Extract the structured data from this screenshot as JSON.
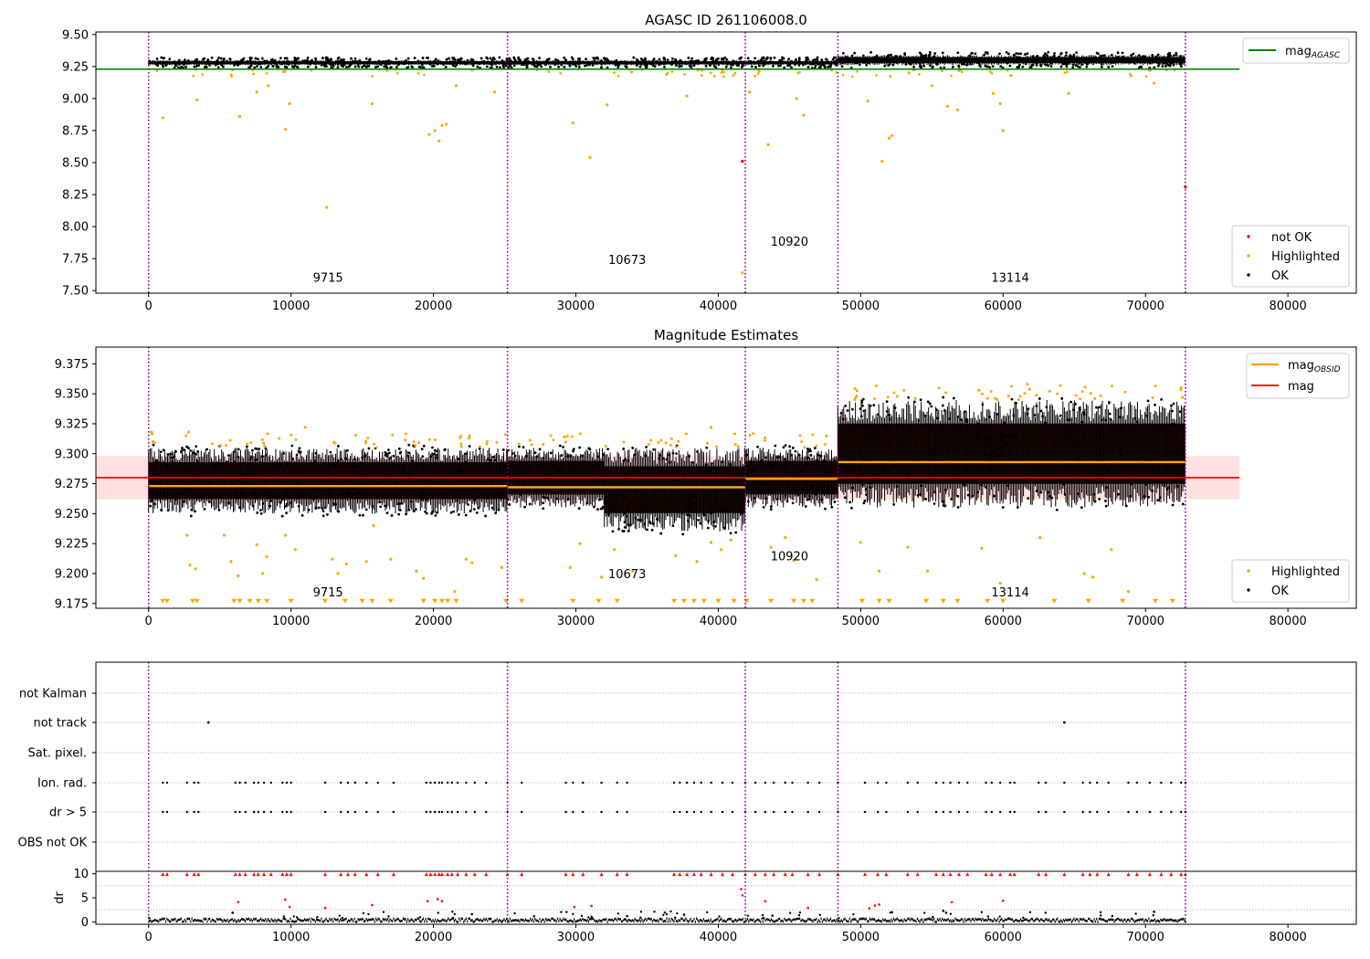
{
  "chart_data": [
    {
      "type": "scatter",
      "title": "AGASC ID 261106008.0",
      "xlim": [
        -3700,
        84800
      ],
      "ylim": [
        7.48,
        9.52
      ],
      "x_ticks": [
        0,
        10000,
        20000,
        30000,
        40000,
        50000,
        60000,
        70000,
        80000
      ],
      "y_ticks": [
        7.5,
        7.75,
        8.0,
        8.25,
        8.5,
        8.75,
        9.0,
        9.25,
        9.5
      ],
      "y_tick_labels": [
        "7.50",
        "7.75",
        "8.00",
        "8.25",
        "8.50",
        "8.75",
        "9.00",
        "9.25",
        "9.50"
      ],
      "obs_boundaries": [
        0,
        25200,
        41900,
        48400,
        72800
      ],
      "mag_agasc": 9.23,
      "mag_agasc_xrange": [
        -3700,
        76600
      ],
      "obs_labels": [
        {
          "text": "9715",
          "x": 12600,
          "y": 7.57
        },
        {
          "text": "10673",
          "x": 33600,
          "y": 7.71
        },
        {
          "text": "10920",
          "x": 45000,
          "y": 7.85
        },
        {
          "text": "13114",
          "x": 60500,
          "y": 7.57
        }
      ],
      "legend_top": [
        {
          "label": "mag",
          "sub": "AGASC",
          "color": "#008000"
        }
      ],
      "legend_bottom": [
        {
          "label": "not OK",
          "color": "#ff0000"
        },
        {
          "label": "Highlighted",
          "color": "#ffa500"
        },
        {
          "label": "OK",
          "color": "#000000"
        }
      ],
      "ok_bands": [
        {
          "x0": 0,
          "x1": 25200,
          "y0": 9.26,
          "y1": 9.3
        },
        {
          "x0": 25200,
          "x1": 41900,
          "y0": 9.26,
          "y1": 9.3
        },
        {
          "x0": 41900,
          "x1": 48400,
          "y0": 9.26,
          "y1": 9.3
        },
        {
          "x0": 48400,
          "x1": 72800,
          "y0": 9.26,
          "y1": 9.34
        }
      ],
      "highlighted_points": [
        [
          1000,
          8.85
        ],
        [
          3400,
          8.99
        ],
        [
          6400,
          8.86
        ],
        [
          7600,
          9.05
        ],
        [
          8400,
          9.1
        ],
        [
          9600,
          8.76
        ],
        [
          9900,
          8.96
        ],
        [
          12500,
          8.15
        ],
        [
          15700,
          8.96
        ],
        [
          19700,
          8.72
        ],
        [
          20100,
          8.75
        ],
        [
          20400,
          8.67
        ],
        [
          20600,
          8.79
        ],
        [
          20900,
          8.8
        ],
        [
          21600,
          9.1
        ],
        [
          24300,
          9.05
        ],
        [
          29800,
          8.81
        ],
        [
          31000,
          8.54
        ],
        [
          32200,
          8.95
        ],
        [
          37800,
          9.02
        ],
        [
          41700,
          7.64
        ],
        [
          42200,
          9.05
        ],
        [
          43500,
          8.64
        ],
        [
          45500,
          9.0
        ],
        [
          46000,
          8.87
        ],
        [
          50500,
          8.98
        ],
        [
          51500,
          8.51
        ],
        [
          52000,
          8.69
        ],
        [
          52200,
          8.71
        ],
        [
          55000,
          9.1
        ],
        [
          56100,
          8.94
        ],
        [
          56800,
          8.91
        ],
        [
          59300,
          9.04
        ],
        [
          59800,
          8.96
        ],
        [
          60000,
          8.75
        ],
        [
          64600,
          9.04
        ],
        [
          70600,
          9.12
        ]
      ],
      "notok_points": [
        [
          41700,
          8.51
        ],
        [
          72800,
          8.31
        ]
      ]
    },
    {
      "type": "scatter",
      "title": "Magnitude Estimates",
      "xlim": [
        -3700,
        84800
      ],
      "ylim": [
        9.171,
        9.389
      ],
      "x_ticks": [
        0,
        10000,
        20000,
        30000,
        40000,
        50000,
        60000,
        70000,
        80000
      ],
      "y_ticks": [
        9.175,
        9.2,
        9.225,
        9.25,
        9.275,
        9.3,
        9.325,
        9.35,
        9.375
      ],
      "y_tick_labels": [
        "9.175",
        "9.200",
        "9.225",
        "9.250",
        "9.275",
        "9.300",
        "9.325",
        "9.350",
        "9.375"
      ],
      "obs_boundaries": [
        0,
        25200,
        41900,
        48400,
        72800
      ],
      "mag": 9.28,
      "mag_band": [
        9.262,
        9.298
      ],
      "mag_xrange": [
        -3700,
        76600
      ],
      "mag_obsid": [
        {
          "x0": 0,
          "x1": 25200,
          "value": 9.273
        },
        {
          "x0": 25200,
          "x1": 41900,
          "value": 9.272
        },
        {
          "x0": 41900,
          "x1": 48400,
          "value": 9.279
        },
        {
          "x0": 48400,
          "x1": 72800,
          "value": 9.293
        }
      ],
      "obs_labels": [
        {
          "text": "9715",
          "x": 12600,
          "y": 9.181
        },
        {
          "text": "10673",
          "x": 33600,
          "y": 9.196
        },
        {
          "text": "10920",
          "x": 45000,
          "y": 9.211
        },
        {
          "text": "13114",
          "x": 60500,
          "y": 9.181
        }
      ],
      "legend_top": [
        {
          "label": "mag",
          "sub": "OBSID",
          "color": "#ffa500"
        },
        {
          "label": "mag",
          "color": "#ff0000"
        }
      ],
      "legend_bottom": [
        {
          "label": "Highlighted",
          "color": "#ffa500"
        },
        {
          "label": "OK",
          "color": "#000000"
        }
      ],
      "ok_bands": [
        {
          "x0": 0,
          "x1": 25200,
          "y0": 9.25,
          "y1": 9.305
        },
        {
          "x0": 25200,
          "x1": 32000,
          "y0": 9.255,
          "y1": 9.305
        },
        {
          "x0": 32000,
          "x1": 41900,
          "y0": 9.235,
          "y1": 9.305
        },
        {
          "x0": 41900,
          "x1": 48400,
          "y0": 9.255,
          "y1": 9.305
        },
        {
          "x0": 48400,
          "x1": 72800,
          "y0": 9.255,
          "y1": 9.345
        }
      ],
      "highlighted_points": [
        [
          200,
          9.318
        ],
        [
          300,
          9.31
        ],
        [
          2700,
          9.232
        ],
        [
          2900,
          9.207
        ],
        [
          3300,
          9.204
        ],
        [
          5300,
          9.232
        ],
        [
          5800,
          9.21
        ],
        [
          6300,
          9.198
        ],
        [
          7600,
          9.224
        ],
        [
          8000,
          9.2
        ],
        [
          8300,
          9.214
        ],
        [
          9600,
          9.232
        ],
        [
          10300,
          9.22
        ],
        [
          12900,
          9.212
        ],
        [
          13300,
          9.2
        ],
        [
          13900,
          9.208
        ],
        [
          15300,
          9.21
        ],
        [
          15800,
          9.24
        ],
        [
          17000,
          9.212
        ],
        [
          18800,
          9.202
        ],
        [
          19300,
          9.196
        ],
        [
          21500,
          9.185
        ],
        [
          22300,
          9.212
        ],
        [
          22700,
          9.209
        ],
        [
          24800,
          9.205
        ],
        [
          29600,
          9.205
        ],
        [
          30300,
          9.225
        ],
        [
          31800,
          9.197
        ],
        [
          32700,
          9.22
        ],
        [
          34000,
          9.202
        ],
        [
          37000,
          9.215
        ],
        [
          38500,
          9.21
        ],
        [
          39500,
          9.226
        ],
        [
          40200,
          9.22
        ],
        [
          40900,
          9.228
        ],
        [
          43700,
          9.222
        ],
        [
          44700,
          9.23
        ],
        [
          45300,
          9.211
        ],
        [
          46900,
          9.195
        ],
        [
          50000,
          9.226
        ],
        [
          51300,
          9.202
        ],
        [
          53300,
          9.222
        ],
        [
          54700,
          9.202
        ],
        [
          58500,
          9.221
        ],
        [
          59800,
          9.192
        ],
        [
          61700,
          9.358
        ],
        [
          62600,
          9.23
        ],
        [
          65700,
          9.2
        ],
        [
          66300,
          9.197
        ],
        [
          67600,
          9.22
        ],
        [
          68800,
          9.185
        ],
        [
          72500,
          9.355
        ],
        [
          72600,
          9.347
        ],
        [
          39500,
          9.322
        ],
        [
          11000,
          9.322
        ],
        [
          2800,
          9.318
        ],
        [
          22500,
          9.313
        ],
        [
          29200,
          9.314
        ],
        [
          58300,
          9.353
        ]
      ],
      "highlighted_markers_y": 9.175,
      "highlighted_markers_x": [
        1000,
        1300,
        3100,
        3400,
        6000,
        6400,
        7100,
        7700,
        8300,
        10000,
        12400,
        13800,
        15000,
        15700,
        17000,
        19300,
        20100,
        20600,
        21000,
        21600,
        25100,
        26200,
        29800,
        31600,
        32900,
        36900,
        37600,
        38300,
        39000,
        40000,
        41100,
        42000,
        43700,
        45300,
        46000,
        46600,
        50100,
        51300,
        52000,
        54600,
        55800,
        56800,
        58900,
        60000,
        63600,
        66000,
        68400,
        70700,
        71900
      ]
    },
    {
      "type": "scatter",
      "title": "",
      "xlim": [
        -3700,
        84800
      ],
      "x_ticks": [
        0,
        10000,
        20000,
        30000,
        40000,
        50000,
        60000,
        70000,
        80000
      ],
      "obs_boundaries": [
        0,
        25200,
        41900,
        48400,
        72800
      ],
      "flag_labels": [
        "not Kalman",
        "not track",
        "Sat. pixel.",
        "Ion. rad.",
        "dr > 5",
        "OBS not OK"
      ],
      "not_track_x": [
        4200,
        64300
      ],
      "ion_rad_x": [
        1000,
        1300,
        2700,
        3200,
        3500,
        6100,
        6400,
        6800,
        7400,
        7700,
        8100,
        8600,
        9400,
        9700,
        10000,
        12400,
        13500,
        14000,
        14500,
        15300,
        16100,
        17200,
        19500,
        19800,
        20100,
        20400,
        20600,
        21000,
        21300,
        21700,
        22300,
        22900,
        23700,
        25200,
        26200,
        29300,
        29800,
        30500,
        31800,
        32900,
        33600,
        36900,
        37300,
        37800,
        38300,
        38800,
        39500,
        40300,
        41000,
        41900,
        42600,
        43300,
        43900,
        44700,
        45200,
        46300,
        47100,
        48400,
        50300,
        51200,
        51800,
        53300,
        54000,
        55300,
        55800,
        56300,
        56900,
        57500,
        58800,
        59200,
        59800,
        60500,
        60800,
        62500,
        63000,
        64300,
        65600,
        66100,
        66600,
        67400,
        68800,
        69400,
        70300,
        71100,
        71800,
        72500,
        72800
      ],
      "dr_ylabel": "dr",
      "dr_ylim": [
        -0.5,
        10.5
      ],
      "dr_ticks": [
        0,
        5,
        10
      ],
      "dr_high_x": [
        1000,
        1300,
        2700,
        3200,
        3500,
        6100,
        6400,
        6800,
        7400,
        7700,
        8100,
        8600,
        9400,
        9700,
        10000,
        12400,
        13500,
        14000,
        14500,
        15300,
        16100,
        17200,
        19500,
        19800,
        20100,
        20400,
        20600,
        21000,
        21300,
        21700,
        22300,
        22900,
        23700,
        25200,
        26200,
        29300,
        29800,
        30500,
        31800,
        32900,
        33600,
        36900,
        37300,
        37800,
        38300,
        38800,
        39500,
        40300,
        41000,
        41900,
        42600,
        43300,
        43900,
        44700,
        45200,
        46300,
        47100,
        48400,
        50300,
        51200,
        51800,
        53300,
        54000,
        55300,
        55800,
        56300,
        56900,
        57500,
        58800,
        59200,
        59800,
        60500,
        60800,
        62500,
        63000,
        64300,
        65600,
        66100,
        66600,
        67400,
        68800,
        69400,
        70300,
        71100,
        71800,
        72500,
        72800
      ],
      "dr_mid_points": [
        [
          6300,
          4.1
        ],
        [
          9600,
          4.6
        ],
        [
          9900,
          3.1
        ],
        [
          12400,
          2.9
        ],
        [
          15700,
          3.5
        ],
        [
          19600,
          4.3
        ],
        [
          20300,
          4.7
        ],
        [
          20600,
          4.3
        ],
        [
          29900,
          3.1
        ],
        [
          31100,
          3.3
        ],
        [
          41600,
          6.8
        ],
        [
          41700,
          5.5
        ],
        [
          43300,
          4.3
        ],
        [
          46300,
          2.9
        ],
        [
          50600,
          2.8
        ],
        [
          51000,
          3.4
        ],
        [
          51300,
          3.6
        ],
        [
          56400,
          4.1
        ],
        [
          60000,
          4.4
        ],
        [
          5900,
          1.9
        ],
        [
          22700,
          1.6
        ],
        [
          33600,
          1.2
        ],
        [
          37600,
          1.5
        ],
        [
          43800,
          1.3
        ],
        [
          52200,
          2.0
        ],
        [
          55800,
          2.3
        ],
        [
          56000,
          1.9
        ],
        [
          70600,
          2.1
        ]
      ]
    }
  ]
}
